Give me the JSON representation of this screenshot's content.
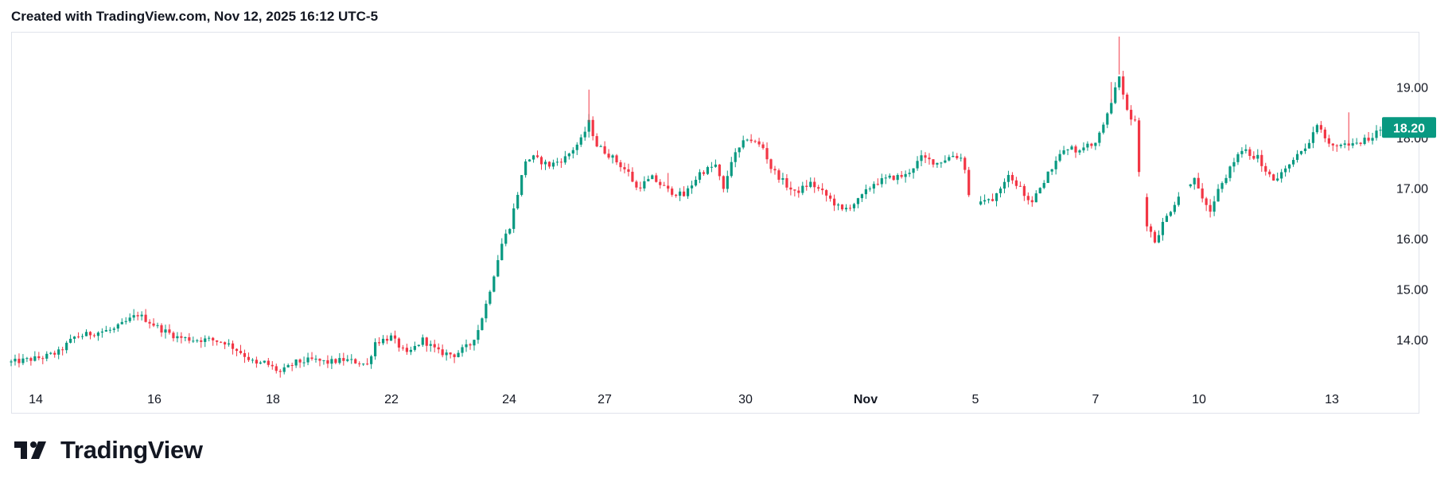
{
  "header": {
    "created_text": "Created with TradingView.com, Nov 12, 2025 16:12 UTC-5"
  },
  "brand": {
    "name": "TradingView",
    "logo_icon": "tradingview-logo-icon"
  },
  "colors": {
    "up": "#089981",
    "down": "#f23645",
    "badge": "#089981",
    "grid_border": "#e0e3eb",
    "text": "#131722"
  },
  "chart_data": {
    "type": "candlestick",
    "title": "",
    "xlabel": "",
    "ylabel": "",
    "ylim": [
      13.0,
      20.0
    ],
    "y_ticks": [
      "14.00",
      "15.00",
      "16.00",
      "17.00",
      "18.00",
      "19.00"
    ],
    "x_ticks": [
      {
        "label": "14",
        "bold": false
      },
      {
        "label": "16",
        "bold": false
      },
      {
        "label": "18",
        "bold": false
      },
      {
        "label": "22",
        "bold": false
      },
      {
        "label": "24",
        "bold": false
      },
      {
        "label": "27",
        "bold": false
      },
      {
        "label": "30",
        "bold": false
      },
      {
        "label": "Nov",
        "bold": true
      },
      {
        "label": "5",
        "bold": false
      },
      {
        "label": "7",
        "bold": false
      },
      {
        "label": "10",
        "bold": false
      },
      {
        "label": "13",
        "bold": false
      }
    ],
    "last_price": "18.20",
    "last_price_value": 18.2,
    "close_path": [
      [
        0,
        13.55
      ],
      [
        8,
        13.65
      ],
      [
        12,
        13.75
      ],
      [
        16,
        14.05
      ],
      [
        22,
        14.15
      ],
      [
        26,
        14.2
      ],
      [
        30,
        14.4
      ],
      [
        32,
        14.5
      ],
      [
        34,
        14.4
      ],
      [
        38,
        14.2
      ],
      [
        42,
        14.05
      ],
      [
        46,
        14.0
      ],
      [
        50,
        14.0
      ],
      [
        54,
        13.95
      ],
      [
        58,
        13.75
      ],
      [
        62,
        13.5
      ],
      [
        64,
        13.55
      ],
      [
        68,
        13.35
      ],
      [
        72,
        13.55
      ],
      [
        76,
        13.6
      ],
      [
        80,
        13.55
      ],
      [
        84,
        13.6
      ],
      [
        88,
        13.55
      ],
      [
        90,
        13.5
      ],
      [
        92,
        13.95
      ],
      [
        96,
        14.05
      ],
      [
        100,
        13.7
      ],
      [
        104,
        14.0
      ],
      [
        108,
        13.75
      ],
      [
        112,
        13.7
      ],
      [
        116,
        13.9
      ],
      [
        118,
        14.2
      ],
      [
        120,
        14.7
      ],
      [
        122,
        15.3
      ],
      [
        124,
        15.9
      ],
      [
        126,
        16.25
      ],
      [
        128,
        16.9
      ],
      [
        130,
        17.55
      ],
      [
        132,
        17.6
      ],
      [
        136,
        17.45
      ],
      [
        140,
        17.6
      ],
      [
        144,
        17.95
      ],
      [
        146,
        18.3
      ],
      [
        148,
        17.85
      ],
      [
        152,
        17.6
      ],
      [
        156,
        17.3
      ],
      [
        158,
        17.0
      ],
      [
        162,
        17.2
      ],
      [
        166,
        16.95
      ],
      [
        170,
        16.85
      ],
      [
        174,
        17.3
      ],
      [
        178,
        17.45
      ],
      [
        180,
        16.95
      ],
      [
        182,
        17.55
      ],
      [
        186,
        18.0
      ],
      [
        190,
        17.8
      ],
      [
        192,
        17.4
      ],
      [
        196,
        17.05
      ],
      [
        198,
        16.9
      ],
      [
        202,
        17.1
      ],
      [
        206,
        16.85
      ],
      [
        210,
        16.55
      ],
      [
        214,
        16.75
      ],
      [
        218,
        17.1
      ],
      [
        222,
        17.2
      ],
      [
        226,
        17.25
      ],
      [
        230,
        17.6
      ],
      [
        234,
        17.5
      ],
      [
        238,
        17.65
      ],
      [
        240,
        17.6
      ],
      [
        241,
        17.4
      ],
      [
        242,
        16.85
      ],
      [
        244,
        16.7
      ],
      [
        248,
        16.8
      ],
      [
        252,
        17.3
      ],
      [
        254,
        17.1
      ],
      [
        258,
        16.7
      ],
      [
        262,
        17.3
      ],
      [
        266,
        17.8
      ],
      [
        270,
        17.75
      ],
      [
        274,
        17.9
      ],
      [
        276,
        18.2
      ],
      [
        278,
        18.7
      ],
      [
        280,
        19.25
      ],
      [
        282,
        18.5
      ],
      [
        284,
        18.3
      ],
      [
        285,
        17.3
      ],
      [
        287,
        16.3
      ],
      [
        289,
        15.95
      ],
      [
        291,
        16.3
      ],
      [
        295,
        16.85
      ],
      [
        299,
        17.2
      ],
      [
        303,
        16.5
      ],
      [
        305,
        16.95
      ],
      [
        307,
        17.25
      ],
      [
        311,
        17.75
      ],
      [
        315,
        17.6
      ],
      [
        319,
        17.15
      ],
      [
        323,
        17.45
      ],
      [
        327,
        17.8
      ],
      [
        330,
        18.25
      ],
      [
        333,
        17.85
      ],
      [
        337,
        17.85
      ],
      [
        341,
        17.9
      ],
      [
        345,
        18.1
      ],
      [
        346,
        18.2
      ]
    ]
  }
}
